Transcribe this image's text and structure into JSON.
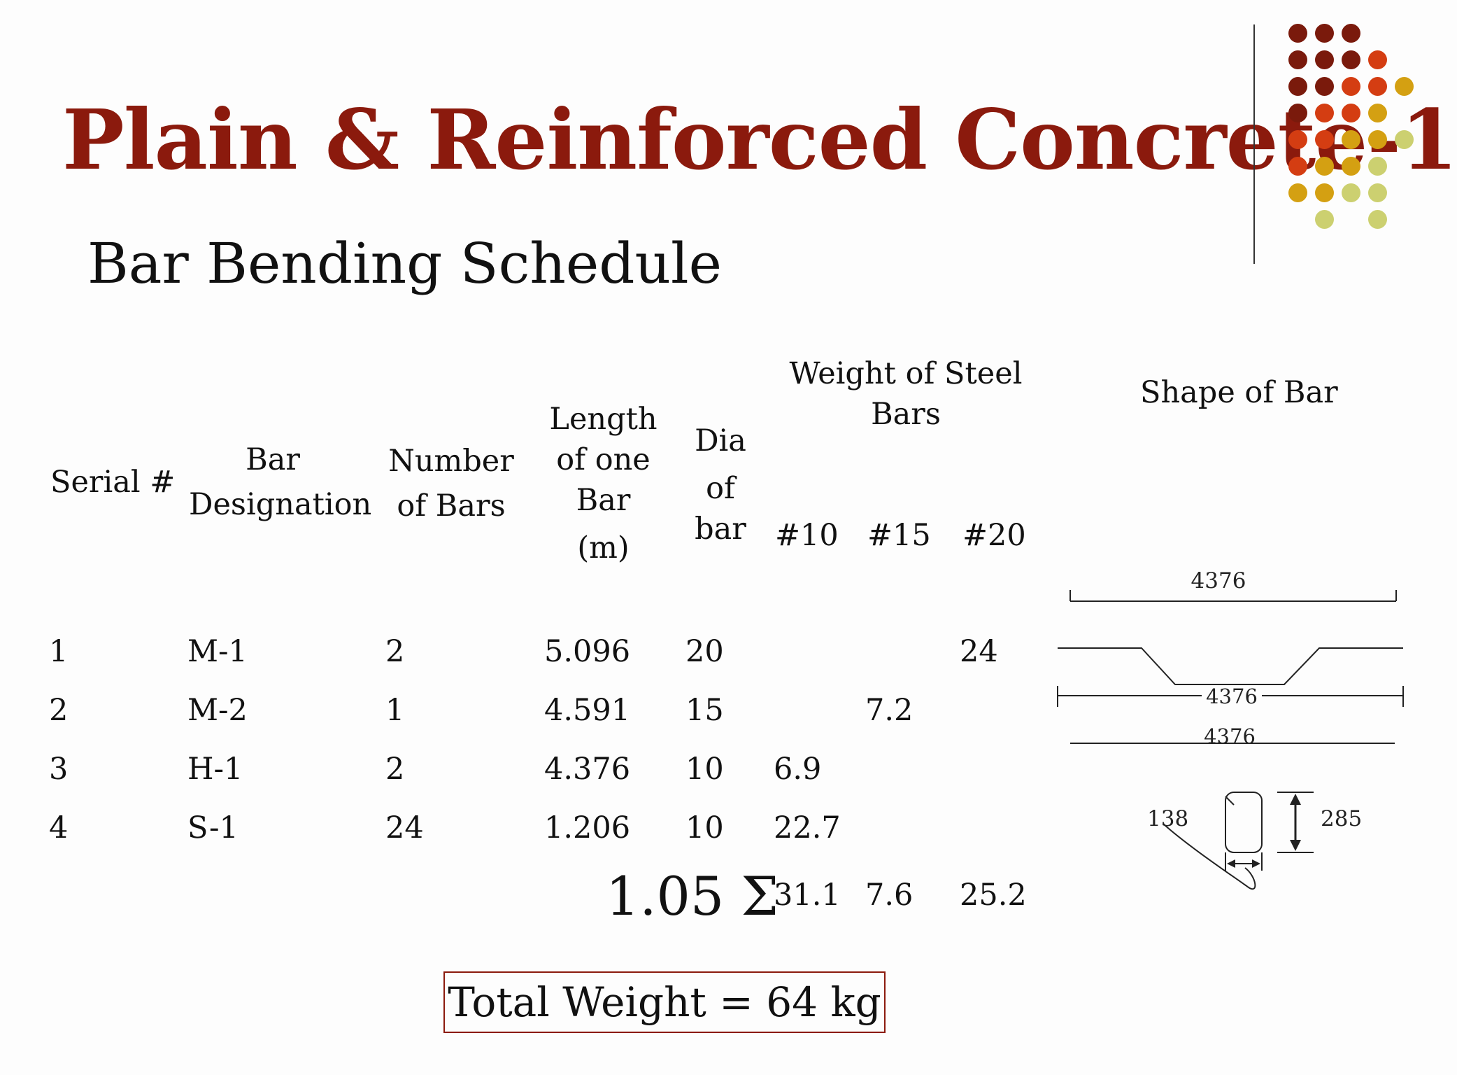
{
  "title": "Plain & Reinforced Concrete-1",
  "subtitle": "Bar Bending Schedule",
  "decoration": {
    "rows": [
      [
        "#7a1a0c",
        "#7a1a0c",
        "#7a1a0c"
      ],
      [
        "#7a1a0c",
        "#7a1a0c",
        "#7a1a0c",
        "#d43d12"
      ],
      [
        "#7a1a0c",
        "#7a1a0c",
        "#d43d12",
        "#d43d12",
        "#d4a012"
      ],
      [
        "#7a1a0c",
        "#d43d12",
        "#d43d12",
        "#d4a012"
      ],
      [
        "#d43d12",
        "#d43d12",
        "#d4a012",
        "#d4a012",
        "#ccd070"
      ],
      [
        "#d43d12",
        "#d4a012",
        "#d4a012",
        "#ccd070"
      ],
      [
        "#d4a012",
        "#d4a012",
        "#ccd070",
        "#ccd070"
      ],
      [
        "#ccd070",
        "#ccd070"
      ]
    ]
  },
  "headers": {
    "serial": "Serial #",
    "designation": [
      "Bar",
      "Designation"
    ],
    "number": [
      "Number",
      "of Bars"
    ],
    "length": [
      "Length",
      "of one",
      "Bar",
      "(m)"
    ],
    "dia": [
      "Dia",
      "of",
      "bar"
    ],
    "weight": [
      "Weight of Steel",
      "Bars"
    ],
    "w10": "#10",
    "w15": "#15",
    "w20": "#20",
    "shape": "Shape of Bar"
  },
  "rows": [
    {
      "serial": "1",
      "designation": "M-1",
      "number": "2",
      "length": "5.096",
      "dia": "20",
      "w10": "",
      "w15": "",
      "w20": "24"
    },
    {
      "serial": "2",
      "designation": "M-2",
      "number": "1",
      "length": "4.591",
      "dia": "15",
      "w10": "",
      "w15": "7.2",
      "w20": ""
    },
    {
      "serial": "3",
      "designation": "H-1",
      "number": "2",
      "length": "4.376",
      "dia": "10",
      "w10": "6.9",
      "w15": "",
      "w20": ""
    },
    {
      "serial": "4",
      "designation": "S-1",
      "number": "24",
      "length": "1.206",
      "dia": "10",
      "w10": "22.7",
      "w15": "",
      "w20": ""
    }
  ],
  "sum": {
    "label": "1.05 Σ",
    "w10": "31.1",
    "w15": "7.6",
    "w20": "25.2"
  },
  "total": "Total Weight = 64 kg",
  "shapes": {
    "dim1": "4376",
    "dim2": "4376",
    "dim3": "4376",
    "stirrup_left": "138",
    "stirrup_right": "285"
  }
}
